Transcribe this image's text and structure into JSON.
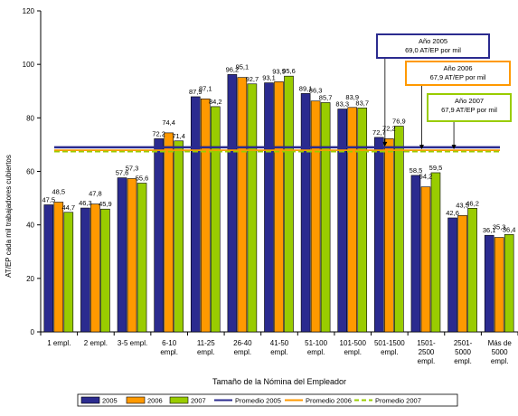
{
  "chart_data": {
    "type": "bar",
    "xlabel": "Tamaño de la Nómina del Empleador",
    "ylabel": "AT/EP cada mil trabajadores cubiertos",
    "ylim": [
      0,
      120
    ],
    "yticks": [
      0,
      20,
      40,
      60,
      80,
      100,
      120
    ],
    "grid": false,
    "legend_position": "bottom",
    "categories": [
      [
        "1 empl."
      ],
      [
        "2 empl."
      ],
      [
        "3-5 empl."
      ],
      [
        "6-10",
        "empl."
      ],
      [
        "11-25",
        "empl."
      ],
      [
        "26-40",
        "empl."
      ],
      [
        "41-50",
        "empl."
      ],
      [
        "51-100",
        "empl."
      ],
      [
        "101-500",
        "empl."
      ],
      [
        "501-1500",
        "empl."
      ],
      [
        "1501-",
        "2500",
        "empl."
      ],
      [
        "2501-",
        "5000",
        "empl."
      ],
      [
        "Más de",
        "5000",
        "empl."
      ]
    ],
    "series": [
      {
        "name": "2005",
        "color": "#2b2b8f",
        "values": [
          47.5,
          46.3,
          57.6,
          72.2,
          87.9,
          96.2,
          93.1,
          89.1,
          83.3,
          72.7,
          58.5,
          42.6,
          36.1
        ],
        "labels": [
          "47,5",
          "46,3",
          "57,6",
          "72,2",
          "87,9",
          "96,2",
          "93,1",
          "89,1",
          "83,3",
          "72,7",
          "58,5",
          "42,6",
          "36,1"
        ]
      },
      {
        "name": "2006",
        "color": "#ff9900",
        "values": [
          48.5,
          47.8,
          57.3,
          74.4,
          87.1,
          95.1,
          93.5,
          86.3,
          83.9,
          72.2,
          54.2,
          43.5,
          35.3
        ],
        "labels": [
          "48,5",
          "47,8",
          "57,3",
          "74,4",
          "87,1",
          "95,1",
          "93,5",
          "86,3",
          "83,9",
          "72,2",
          "54,2",
          "43,5",
          "35,3"
        ]
      },
      {
        "name": "2007",
        "color": "#99cc00",
        "values": [
          44.7,
          45.9,
          55.6,
          71.4,
          84.2,
          92.7,
          95.6,
          85.7,
          83.7,
          76.9,
          59.5,
          46.2,
          36.4
        ],
        "labels": [
          "44,7",
          "45,9",
          "55,6",
          "71,4",
          "84,2",
          "92,7",
          "95,6",
          "85,7",
          "83,7",
          "76,9",
          "59,5",
          "46,2",
          "36,4"
        ]
      }
    ],
    "averages": [
      {
        "name": "Promedio 2005",
        "value": 69.0,
        "color": "#2b2b8f",
        "dash": "solid"
      },
      {
        "name": "Promedio 2006",
        "value": 67.9,
        "color": "#ff9900",
        "dash": "solid"
      },
      {
        "name": "Promedio 2007",
        "value": 67.9,
        "color": "#99cc00",
        "dash": "dashed"
      }
    ],
    "annotations": [
      {
        "lines": [
          "Año 2005",
          "69,0 AT/EP por mil"
        ],
        "color": "#2b2b8f",
        "points_to_category": 9
      },
      {
        "lines": [
          "Año 2006",
          "67,9 AT/EP por mil"
        ],
        "color": "#ff9900",
        "points_to_category": 10
      },
      {
        "lines": [
          "Año 2007",
          "67,9 AT/EP por mil"
        ],
        "color": "#99cc00",
        "points_to_category": 11
      }
    ]
  }
}
